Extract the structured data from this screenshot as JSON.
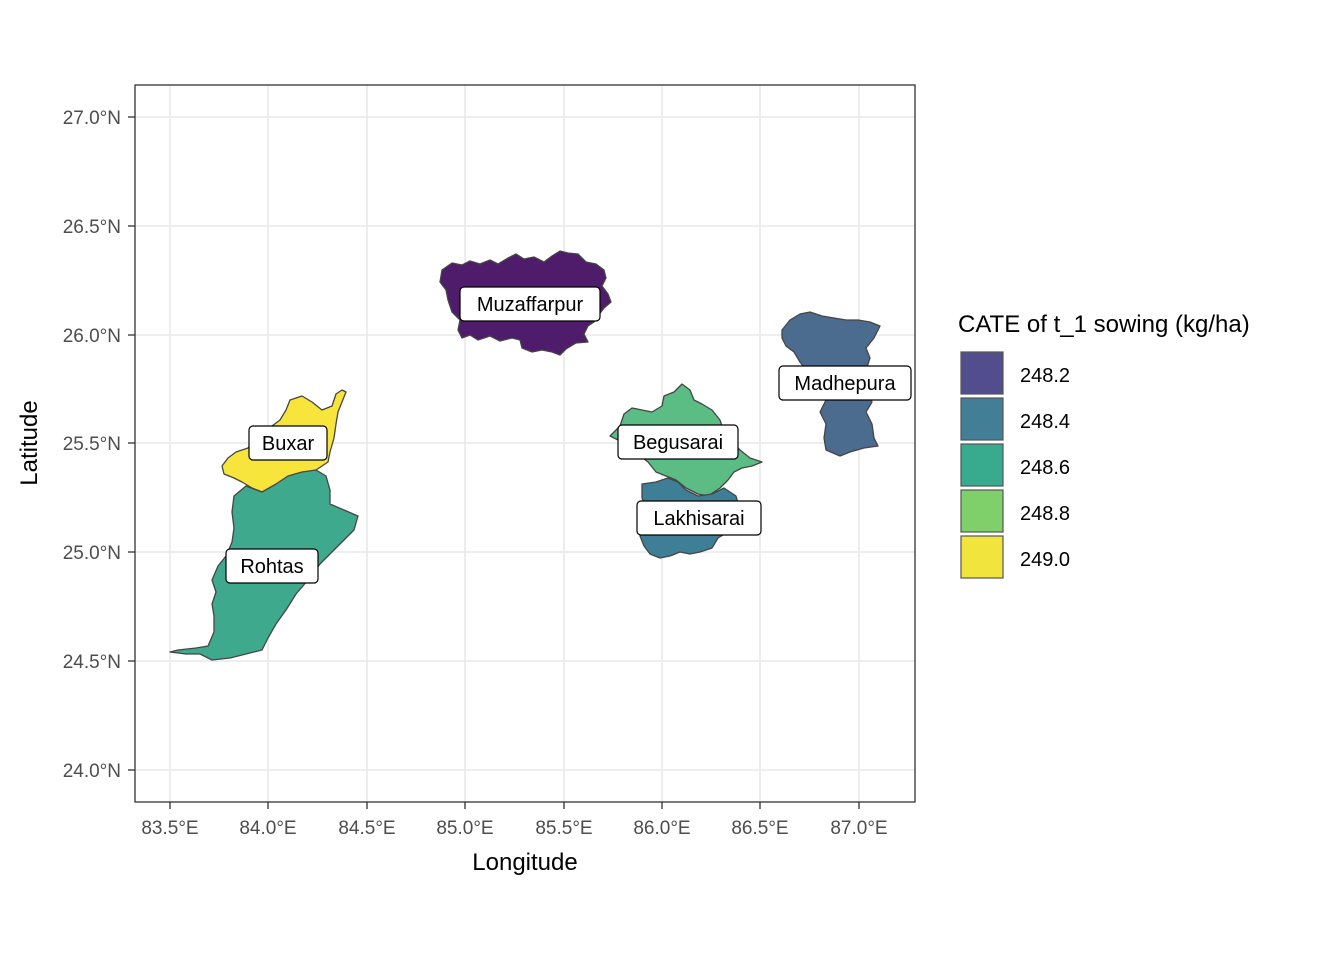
{
  "map": {
    "x_axis_label": "Longitude",
    "y_axis_label": "Latitude",
    "x_ticks": [
      "83.5°E",
      "84.0°E",
      "84.5°E",
      "85.0°E",
      "85.5°E",
      "86.0°E",
      "86.5°E",
      "87.0°E"
    ],
    "y_ticks": [
      "24.0°N",
      "24.5°N",
      "25.0°N",
      "25.5°N",
      "26.0°N",
      "26.5°N",
      "27.0°N"
    ],
    "legend": {
      "title": "CATE of t_1 sowing (kg/ha)",
      "entries": [
        {
          "label": "248.2",
          "color": "#524e8d"
        },
        {
          "label": "248.4",
          "color": "#437e97"
        },
        {
          "label": "248.6",
          "color": "#38ab8e"
        },
        {
          "label": "248.8",
          "color": "#7fcf6a"
        },
        {
          "label": "249.0",
          "color": "#f0e43d"
        }
      ]
    },
    "districts": [
      {
        "name": "Muzaffarpur",
        "color": "#4e1c6a"
      },
      {
        "name": "Madhepura",
        "color": "#4b6b8f"
      },
      {
        "name": "Buxar",
        "color": "#f7e53c"
      },
      {
        "name": "Rohtas",
        "color": "#3ea98c"
      },
      {
        "name": "Begusarai",
        "color": "#5bbd83"
      },
      {
        "name": "Lakhisarai",
        "color": "#3e7e96"
      }
    ]
  }
}
